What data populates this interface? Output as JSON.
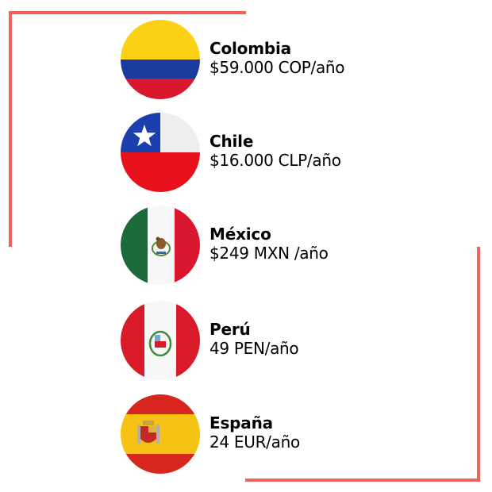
{
  "colors": {
    "frame": "#f0625a"
  },
  "countries": [
    {
      "name": "Colombia",
      "price": "$59.000 COP/año",
      "flag": "colombia-flag-icon"
    },
    {
      "name": "Chile",
      "price": "$16.000 CLP/año",
      "flag": "chile-flag-icon"
    },
    {
      "name": "México",
      "price": "$249 MXN /año",
      "flag": "mexico-flag-icon"
    },
    {
      "name": "Perú",
      "price": "49 PEN/año",
      "flag": "peru-flag-icon"
    },
    {
      "name": "España",
      "price": "24 EUR/año",
      "flag": "spain-flag-icon"
    }
  ]
}
